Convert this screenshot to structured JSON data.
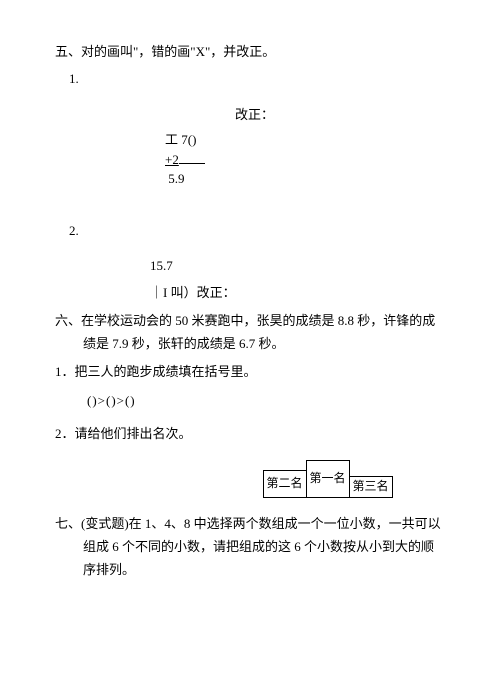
{
  "section5": {
    "heading": "五、对的画叫\"，错的画\"X\"，并改正。",
    "item1": {
      "num": "1.",
      "correction_label": "改正：",
      "row1": "工 7()",
      "row2": "+2",
      "row3": "5.9"
    },
    "item2": {
      "num": "2.",
      "row1": "15.7",
      "row2": "｜I 叫）改正："
    }
  },
  "section6": {
    "heading": "六、在学校运动会的 50 米赛跑中，张昊的成绩是 8.8 秒，许锋的成绩是 7.9 秒，张轩的成绩是 6.7 秒。",
    "q1": {
      "label": "1．把三人的跑步成绩填在括号里。",
      "blanks": "()>()>()"
    },
    "q2": {
      "label": "2．请给他们排出名次。",
      "rank1": "第一名",
      "rank2": "第二名",
      "rank3": "第三名"
    }
  },
  "section7": {
    "heading": "七、(变式题)在 1、4、8 中选择两个数组成一个一位小数，一共可以组成 6 个不同的小数，请把组成的这 6 个小数按从小到大的顺序排列。"
  }
}
